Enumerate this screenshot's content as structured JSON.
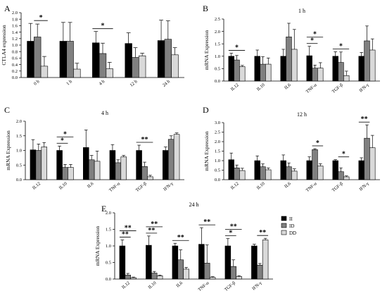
{
  "figure_labels": {
    "A": "A",
    "B": "B",
    "C": "C",
    "D": "D",
    "E": "E"
  },
  "legend": [
    {
      "label": "II",
      "color": "#000000"
    },
    {
      "label": "ID",
      "color": "#808080"
    },
    {
      "label": "DD",
      "color": "#d9d9d9"
    }
  ],
  "chart_data": [
    {
      "panel": "A",
      "type": "bar",
      "title": "",
      "ylabel": "CTLA4 expression",
      "ylim": [
        0,
        2.0
      ],
      "yticks": [
        "0.0",
        "0.2",
        "0.4",
        "0.6",
        "0.8",
        "1.0",
        "1.2",
        "1.4",
        "1.6",
        "1.8",
        "2.0"
      ],
      "categories": [
        "0 h",
        "1 h",
        "4 h",
        "12 h",
        "24 h"
      ],
      "series": [
        {
          "values": [
            1.12,
            1.12,
            1.07,
            1.05,
            1.14
          ],
          "errors": [
            0.55,
            0.58,
            0.35,
            0.33,
            0.63
          ]
        },
        {
          "values": [
            1.25,
            1.12,
            0.74,
            0.62,
            1.18
          ],
          "errors": [
            0.4,
            0.58,
            0.32,
            0.3,
            0.57
          ]
        },
        {
          "values": [
            0.35,
            0.26,
            0.27,
            0.67,
            0.7
          ],
          "errors": [
            0.3,
            0.18,
            0.2,
            0.08,
            0.22
          ]
        }
      ],
      "significance": [
        {
          "cat": 0,
          "from": 1,
          "to": 2,
          "label": "*"
        },
        {
          "cat": 2,
          "from": 0,
          "to": 2,
          "label": "*"
        }
      ]
    },
    {
      "panel": "B",
      "type": "bar",
      "title": "1 h",
      "ylabel": "mRNA Expression",
      "ylim": [
        0,
        2.5
      ],
      "yticks": [
        "0.0",
        "0.5",
        "1.0",
        "1.5",
        "2.0",
        "2.5"
      ],
      "categories": [
        "IL12",
        "IL10",
        "IL6",
        "TNF-α",
        "TGF-β",
        "IFN-γ"
      ],
      "series": [
        {
          "values": [
            1.0,
            1.0,
            1.0,
            1.02,
            1.0,
            1.0
          ],
          "errors": [
            0.12,
            0.25,
            0.28,
            0.38,
            0.18,
            0.15
          ]
        },
        {
          "values": [
            0.85,
            0.68,
            1.78,
            0.52,
            0.75,
            1.62
          ],
          "errors": [
            0.18,
            0.3,
            0.55,
            0.12,
            0.42,
            0.6
          ]
        },
        {
          "values": [
            0.58,
            0.68,
            1.28,
            0.52,
            0.22,
            1.25
          ],
          "errors": [
            0.05,
            0.25,
            0.8,
            0.22,
            0.18,
            0.45
          ]
        }
      ],
      "significance": [
        {
          "cat": 0,
          "from": 0,
          "to": 2,
          "label": "*"
        },
        {
          "cat": 3,
          "from": 0,
          "to": 1,
          "label": "*"
        },
        {
          "cat": 3,
          "from": 0,
          "to": 2,
          "label": "*"
        },
        {
          "cat": 4,
          "from": 0,
          "to": 2,
          "label": "*"
        }
      ]
    },
    {
      "panel": "C",
      "type": "bar",
      "title": "4 h",
      "ylabel": "mRNA Expression",
      "ylim": [
        0,
        2.0
      ],
      "yticks": [
        "0.0",
        "0.5",
        "1.0",
        "1.5",
        "2.0"
      ],
      "categories": [
        "IL12",
        "IL10",
        "IL6",
        "TNF-α",
        "TGF-β",
        "IFN-γ"
      ],
      "series": [
        {
          "values": [
            1.02,
            1.0,
            1.1,
            1.0,
            1.0,
            1.0
          ],
          "errors": [
            0.35,
            0.15,
            0.6,
            0.2,
            0.18,
            0.12
          ]
        },
        {
          "values": [
            1.0,
            0.42,
            0.68,
            0.58,
            0.45,
            1.38
          ],
          "errors": [
            0.22,
            0.1,
            0.15,
            0.1,
            0.15,
            0.12
          ]
        },
        {
          "values": [
            1.12,
            0.42,
            0.63,
            0.78,
            0.1,
            1.55
          ],
          "errors": [
            0.15,
            0.1,
            0.35,
            0.05,
            0.05,
            0.05
          ]
        }
      ],
      "significance": [
        {
          "cat": 1,
          "from": 0,
          "to": 1,
          "label": "*"
        },
        {
          "cat": 1,
          "from": 0,
          "to": 2,
          "label": "*"
        },
        {
          "cat": 4,
          "from": 0,
          "to": 2,
          "label": "**"
        }
      ]
    },
    {
      "panel": "D",
      "type": "bar",
      "title": "12 h",
      "ylabel": "mRNA Expression",
      "ylim": [
        0,
        3.0
      ],
      "yticks": [
        "0.0",
        "0.5",
        "1.0",
        "1.5",
        "2.0",
        "2.5",
        "3.0"
      ],
      "categories": [
        "IL12",
        "IL10",
        "IL6",
        "TNF-α",
        "TGF-β",
        "IFN-γ"
      ],
      "series": [
        {
          "values": [
            1.05,
            1.0,
            1.0,
            1.0,
            1.0,
            1.0
          ],
          "errors": [
            0.35,
            0.25,
            0.3,
            0.2,
            0.05,
            0.15
          ]
        },
        {
          "values": [
            0.62,
            0.68,
            0.68,
            1.58,
            0.42,
            2.18
          ],
          "errors": [
            0.15,
            0.15,
            0.2,
            0.05,
            0.2,
            0.7
          ]
        },
        {
          "values": [
            0.48,
            0.52,
            0.45,
            0.72,
            0.15,
            1.68
          ],
          "errors": [
            0.12,
            0.1,
            0.12,
            0.12,
            0.05,
            0.65
          ]
        }
      ],
      "significance": [
        {
          "cat": 3,
          "from": 1,
          "to": 2,
          "label": "*"
        },
        {
          "cat": 4,
          "from": 1,
          "to": 2,
          "label": "*"
        },
        {
          "cat": 5,
          "from": 0,
          "to": 1,
          "label": "**"
        }
      ]
    },
    {
      "panel": "E",
      "type": "bar",
      "title": "24 h",
      "ylabel": "mRNA Expression",
      "ylim": [
        0,
        2.0
      ],
      "yticks": [
        "0.0",
        "0.5",
        "1.0",
        "1.5",
        "2.0"
      ],
      "categories": [
        "IL12",
        "IL10",
        "IL6",
        "TNF-α",
        "TGF-β",
        "IFN-γ"
      ],
      "series": [
        {
          "values": [
            1.0,
            1.02,
            1.0,
            1.05,
            1.0,
            1.0
          ],
          "errors": [
            0.18,
            0.28,
            0.08,
            0.5,
            0.22,
            0.05
          ]
        },
        {
          "values": [
            0.12,
            0.18,
            0.58,
            0.48,
            0.38,
            0.42
          ],
          "errors": [
            0.05,
            0.05,
            0.3,
            0.55,
            0.2,
            0.05
          ]
        },
        {
          "values": [
            0.04,
            0.1,
            0.3,
            0.05,
            0.08,
            1.18
          ],
          "errors": [
            0.02,
            0.02,
            0.05,
            0.02,
            0.02,
            0.05
          ]
        }
      ],
      "significance": [
        {
          "cat": 0,
          "from": 0,
          "to": 1,
          "label": "**"
        },
        {
          "cat": 0,
          "from": 0,
          "to": 2,
          "label": "**"
        },
        {
          "cat": 1,
          "from": 0,
          "to": 1,
          "label": "**"
        },
        {
          "cat": 1,
          "from": 0,
          "to": 2,
          "label": "**"
        },
        {
          "cat": 2,
          "from": 0,
          "to": 2,
          "label": "**"
        },
        {
          "cat": 3,
          "from": 0,
          "to": 2,
          "label": "**"
        },
        {
          "cat": 4,
          "from": 0,
          "to": 1,
          "label": "*"
        },
        {
          "cat": 4,
          "from": 0,
          "to": 2,
          "label": "**"
        },
        {
          "cat": 5,
          "from": 1,
          "to": 2,
          "label": "**"
        }
      ]
    }
  ]
}
